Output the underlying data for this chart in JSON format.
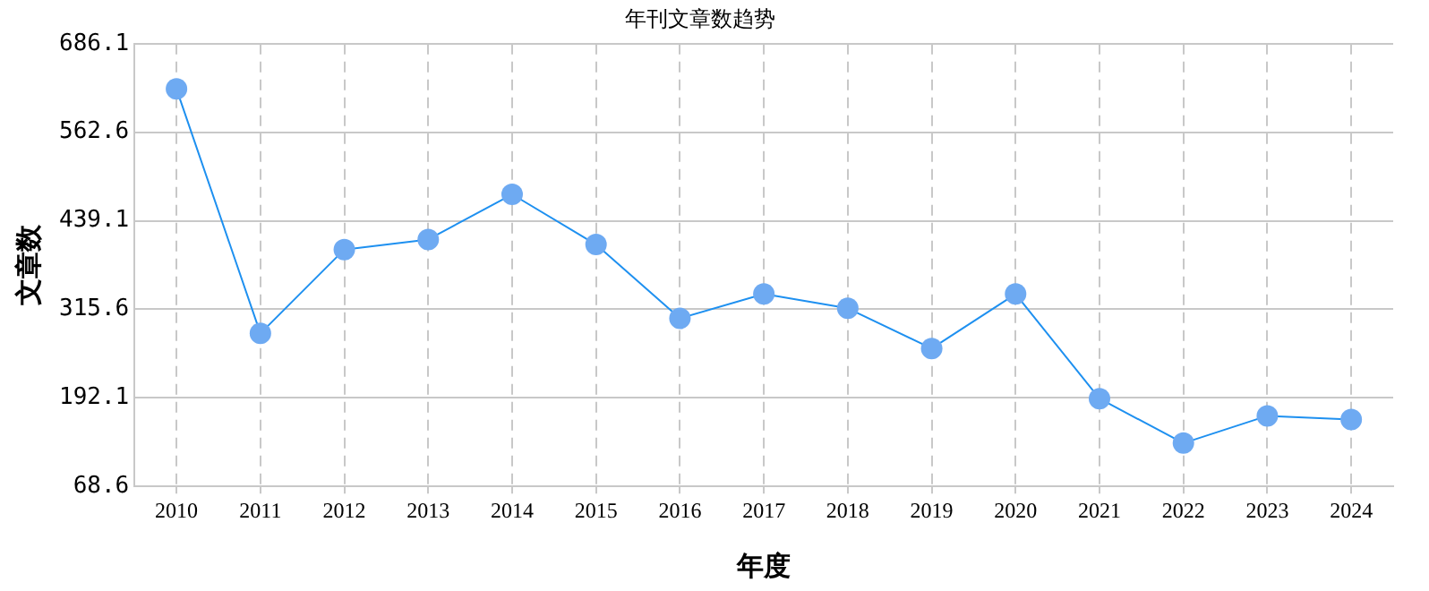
{
  "chart_data": {
    "type": "line",
    "title": "年刊文章数趋势",
    "xlabel": "年度",
    "ylabel": "文章数",
    "categories": [
      "2010",
      "2011",
      "2012",
      "2013",
      "2014",
      "2015",
      "2016",
      "2017",
      "2018",
      "2019",
      "2020",
      "2021",
      "2022",
      "2023",
      "2024"
    ],
    "series": [
      {
        "color": "#1e90f0",
        "values": [
          623,
          282,
          399,
          413,
          476,
          406,
          303,
          337,
          317,
          261,
          337,
          191,
          129,
          167,
          162
        ]
      }
    ],
    "ylim": [
      68.6,
      686.1
    ],
    "yticks": [
      68.6,
      192.1,
      315.6,
      439.1,
      562.6,
      686.1
    ],
    "grid": true,
    "marker": "circle",
    "line_style": "solid",
    "legend": false
  }
}
